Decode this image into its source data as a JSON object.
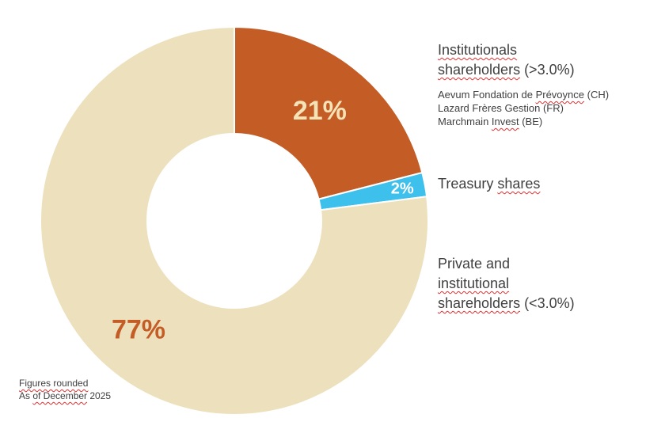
{
  "chart_data": {
    "type": "pie",
    "variant": "donut",
    "categories": [
      "Institutionals shareholders (>3.0%)",
      "Treasury shares",
      "Private and institutional shareholders (<3.0%)"
    ],
    "values": [
      21,
      2,
      77
    ],
    "labels": [
      "21%",
      "2%",
      "77%"
    ],
    "colors": [
      "#c45c26",
      "#3ec0ec",
      "#ede0bc"
    ],
    "label_colors": [
      "#f5e3b8",
      "#ffffff",
      "#c45c26"
    ],
    "start_angle_deg": 0,
    "direction": "clockwise",
    "legend_placement": "right"
  },
  "legend": {
    "institutional": {
      "title_line1": "Institutionals",
      "title_line2": "shareholders",
      "title_line2_rest": " (>3.0%)",
      "holders": [
        {
          "a": "Aevum Fondation de ",
          "b": "Prévoynce",
          "c": " (CH)"
        },
        {
          "a": "Lazard Frères Gestion (FR)",
          "b": "",
          "c": ""
        },
        {
          "a": "Marchmain ",
          "b": "Invest",
          "c": " (BE)"
        }
      ]
    },
    "treasury": {
      "a": "Treasury ",
      "b": "shares"
    },
    "private": {
      "line1": "Private and",
      "line2": "institutional",
      "line3": "shareholders",
      "line3_rest": " (<3.0%)"
    }
  },
  "footnote": {
    "line1": "Figures rounded",
    "line2_a": "As ",
    "line2_b": "of December",
    "line2_c": " 2025"
  }
}
